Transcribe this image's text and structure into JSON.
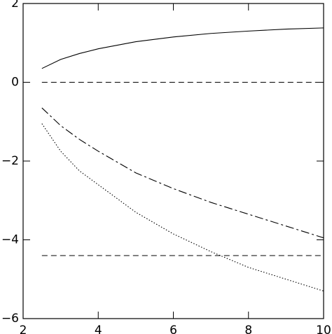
{
  "chart_data": {
    "type": "line",
    "xlim": [
      2,
      10
    ],
    "ylim": [
      -6,
      2
    ],
    "xticks": [
      2,
      4,
      6,
      8,
      10
    ],
    "yticks": [
      {
        "value": -6,
        "label": "−6"
      },
      {
        "value": -4,
        "label": "−4"
      },
      {
        "value": -2,
        "label": "−2"
      },
      0,
      2
    ],
    "series": [
      {
        "color": "#000000",
        "dash": "solid",
        "x": [
          2.5,
          3,
          3.5,
          4,
          5,
          6,
          7,
          8,
          9,
          10
        ],
        "values": [
          0.35,
          0.58,
          0.73,
          0.85,
          1.03,
          1.15,
          1.24,
          1.3,
          1.35,
          1.38
        ]
      },
      {
        "color": "#000000",
        "dash": "dashed",
        "x": [
          2.5,
          10
        ],
        "values": [
          0,
          0
        ]
      },
      {
        "color": "#000000",
        "dash": "dashdot",
        "x": [
          2.5,
          3,
          3.5,
          4,
          5,
          6,
          7,
          8,
          9,
          10
        ],
        "values": [
          -0.65,
          -1.1,
          -1.45,
          -1.75,
          -2.3,
          -2.7,
          -3.05,
          -3.35,
          -3.65,
          -3.95
        ]
      },
      {
        "color": "#000000",
        "dash": "dotted",
        "x": [
          2.5,
          3,
          3.5,
          4,
          5,
          6,
          7,
          8,
          9,
          10
        ],
        "values": [
          -1.05,
          -1.75,
          -2.25,
          -2.6,
          -3.3,
          -3.85,
          -4.3,
          -4.7,
          -5.0,
          -5.3
        ]
      },
      {
        "color": "#000000",
        "dash": "dashed",
        "x": [
          2.5,
          10
        ],
        "values": [
          -4.4,
          -4.4
        ]
      }
    ]
  }
}
